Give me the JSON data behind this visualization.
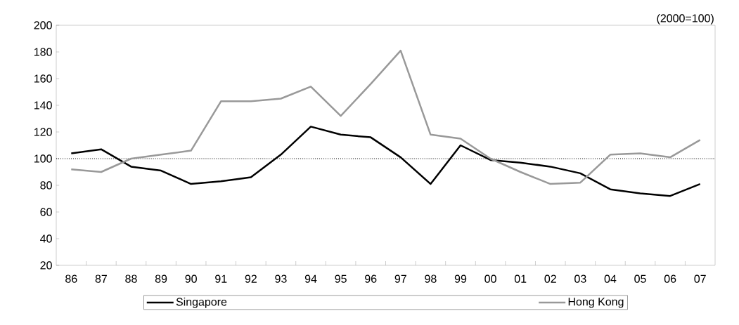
{
  "chart_data": {
    "type": "line",
    "categories": [
      "86",
      "87",
      "88",
      "89",
      "90",
      "91",
      "92",
      "93",
      "94",
      "95",
      "96",
      "97",
      "98",
      "99",
      "00",
      "01",
      "02",
      "03",
      "04",
      "05",
      "06",
      "07"
    ],
    "series": [
      {
        "name": "Singapore",
        "color": "#000000",
        "values": [
          104,
          107,
          94,
          91,
          81,
          83,
          86,
          103,
          124,
          118,
          116,
          101,
          81,
          110,
          99,
          97,
          94,
          89,
          77,
          74,
          72,
          81
        ]
      },
      {
        "name": "Hong Kong",
        "color": "#999999",
        "values": [
          92,
          90,
          100,
          103,
          106,
          143,
          143,
          145,
          154,
          132,
          156,
          181,
          118,
          115,
          100,
          90,
          81,
          82,
          103,
          104,
          101,
          114
        ]
      }
    ],
    "ylim": [
      20,
      200
    ],
    "yticks": [
      20,
      40,
      60,
      80,
      100,
      120,
      140,
      160,
      180,
      200
    ],
    "ref_lines": [
      {
        "axis": "y",
        "value": 100,
        "line_style": "dotted",
        "color": "#000000"
      }
    ],
    "annotations": [
      "(2000=100)"
    ],
    "legend": "bottom",
    "grid": false,
    "marker": "none",
    "line_style": "solid"
  }
}
